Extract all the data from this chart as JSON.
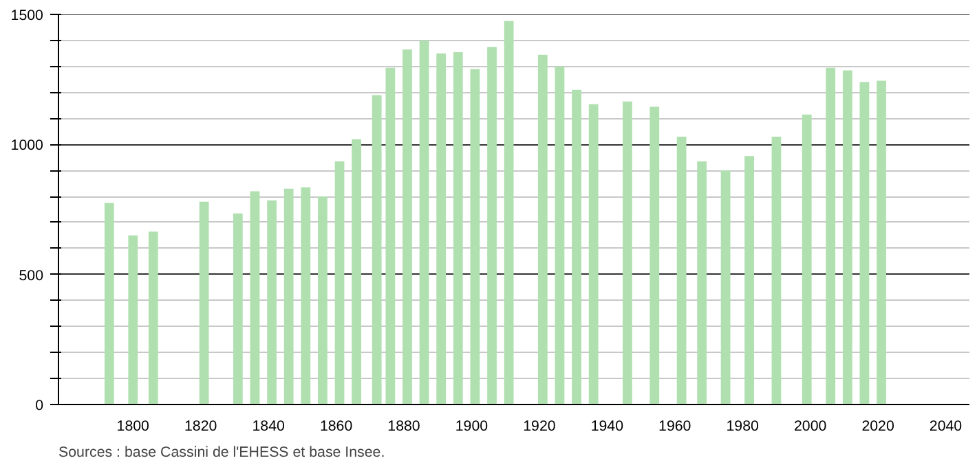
{
  "chart_data": {
    "type": "bar",
    "x": [
      1793,
      1800,
      1806,
      1821,
      1831,
      1836,
      1841,
      1846,
      1851,
      1856,
      1861,
      1866,
      1872,
      1876,
      1881,
      1886,
      1891,
      1896,
      1901,
      1906,
      1911,
      1921,
      1926,
      1931,
      1936,
      1946,
      1954,
      1962,
      1968,
      1975,
      1982,
      1990,
      1999,
      2006,
      2011,
      2016,
      2021
    ],
    "values": [
      775,
      650,
      665,
      780,
      735,
      820,
      785,
      830,
      835,
      800,
      935,
      1020,
      1190,
      1295,
      1365,
      1400,
      1350,
      1355,
      1290,
      1375,
      1475,
      1345,
      1300,
      1210,
      1155,
      1165,
      1145,
      1030,
      935,
      900,
      955,
      1030,
      1115,
      1295,
      1285,
      1240,
      1245
    ],
    "color": "#b0e0b0",
    "xlim": [
      1778,
      2047
    ],
    "xticks": [
      1800,
      1820,
      1840,
      1860,
      1880,
      1900,
      1920,
      1940,
      1960,
      1980,
      2000,
      2020,
      2040
    ],
    "ylim": [
      0,
      1500
    ],
    "yticks": [
      0,
      {
        "value": 100,
        "label": null
      },
      {
        "value": 200,
        "label": null
      },
      {
        "value": 300,
        "label": null
      },
      {
        "value": 400,
        "label": null
      },
      500,
      {
        "value": 600,
        "label": null
      },
      {
        "value": 700,
        "label": null
      },
      {
        "value": 800,
        "label": null
      },
      {
        "value": 900,
        "label": null
      },
      1000,
      {
        "value": 1100,
        "label": null
      },
      {
        "value": 1200,
        "label": null
      },
      {
        "value": 1300,
        "label": null
      },
      {
        "value": 1400,
        "label": null
      },
      1500
    ],
    "grid": "y",
    "annotations": [
      "Sources : base Cassini de l'EHESS et base Insee."
    ]
  }
}
